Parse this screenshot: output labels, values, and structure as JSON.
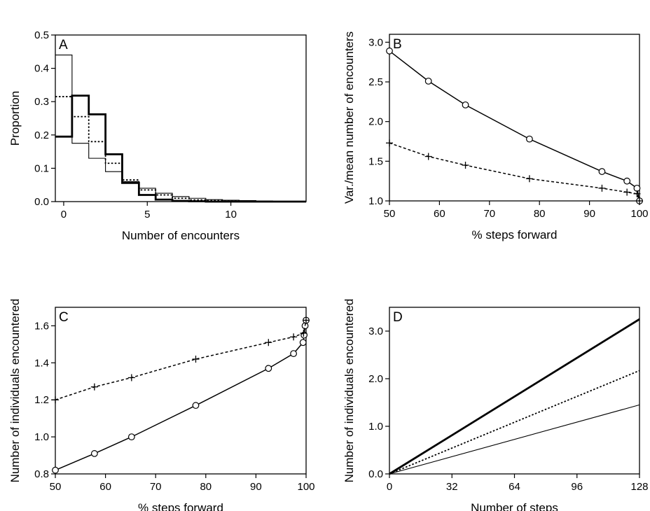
{
  "chart_data": [
    {
      "id": "A",
      "type": "histogram",
      "panel_label": "A",
      "xlabel": "Number of encounters",
      "ylabel": "Proportion",
      "xlim": [
        -0.5,
        14.5
      ],
      "ylim": [
        0,
        0.5
      ],
      "xticks": [
        0,
        5,
        10
      ],
      "yticks": [
        0.0,
        0.1,
        0.2,
        0.3,
        0.4,
        0.5
      ],
      "ytick_labels": [
        "0.0",
        "0.1",
        "0.2",
        "0.3",
        "0.4",
        "0.5"
      ],
      "categories": [
        0,
        1,
        2,
        3,
        4,
        5,
        6,
        7,
        8,
        9,
        10,
        11,
        12,
        13,
        14
      ],
      "series": [
        {
          "style": "thin",
          "values": [
            0.44,
            0.175,
            0.13,
            0.09,
            0.06,
            0.04,
            0.025,
            0.015,
            0.01,
            0.006,
            0.004,
            0.003,
            0.002,
            0.001,
            0.001
          ]
        },
        {
          "style": "dotted",
          "values": [
            0.315,
            0.255,
            0.18,
            0.115,
            0.065,
            0.035,
            0.02,
            0.01,
            0.005,
            0.003,
            0.002,
            0.001,
            0.001,
            0.0,
            0.0
          ]
        },
        {
          "style": "thick",
          "values": [
            0.195,
            0.318,
            0.262,
            0.142,
            0.056,
            0.02,
            0.006,
            0.002,
            0.001,
            0.0,
            0.0,
            0.0,
            0.0,
            0.0,
            0.0
          ]
        }
      ]
    },
    {
      "id": "B",
      "type": "line",
      "panel_label": "B",
      "xlabel": "% steps forward",
      "ylabel": "Var./mean number of encounters",
      "xlim": [
        50,
        100
      ],
      "ylim": [
        1.0,
        3.1
      ],
      "xticks": [
        50,
        60,
        70,
        80,
        90,
        100
      ],
      "yticks": [
        1.0,
        1.5,
        2.0,
        2.5,
        3.0
      ],
      "ytick_labels": [
        "1.0",
        "1.5",
        "2.0",
        "2.5",
        "3.0"
      ],
      "series": [
        {
          "style": "solid",
          "marker": "circle",
          "x": [
            50,
            57.8,
            65.2,
            78,
            92.5,
            97.5,
            99.5,
            100
          ],
          "y": [
            2.89,
            2.51,
            2.21,
            1.78,
            1.37,
            1.25,
            1.16,
            1.0
          ]
        },
        {
          "style": "dashed",
          "marker": "plus",
          "x": [
            50,
            57.8,
            65.2,
            78,
            92.5,
            97.5,
            99.5,
            100
          ],
          "y": [
            1.73,
            1.56,
            1.45,
            1.28,
            1.16,
            1.11,
            1.09,
            1.0
          ]
        }
      ]
    },
    {
      "id": "C",
      "type": "line",
      "panel_label": "C",
      "xlabel": "% steps forward",
      "ylabel": "Number of individuals encountered",
      "xlim": [
        50,
        100
      ],
      "ylim": [
        0.8,
        1.7
      ],
      "xticks": [
        50,
        60,
        70,
        80,
        90,
        100
      ],
      "yticks": [
        0.8,
        1.0,
        1.2,
        1.4,
        1.6
      ],
      "ytick_labels": [
        "0.8",
        "1.0",
        "1.2",
        "1.4",
        "1.6"
      ],
      "series": [
        {
          "style": "solid",
          "marker": "circle",
          "x": [
            50,
            57.8,
            65.2,
            78,
            92.5,
            97.5,
            99.4,
            99.6,
            99.8,
            100
          ],
          "y": [
            0.82,
            0.91,
            1.0,
            1.17,
            1.37,
            1.45,
            1.51,
            1.55,
            1.6,
            1.63
          ]
        },
        {
          "style": "dashed",
          "marker": "plus",
          "x": [
            50,
            57.8,
            65.2,
            78,
            92.5,
            97.5,
            99.5,
            100
          ],
          "y": [
            1.2,
            1.27,
            1.32,
            1.42,
            1.51,
            1.54,
            1.56,
            1.63
          ]
        }
      ]
    },
    {
      "id": "D",
      "type": "line",
      "panel_label": "D",
      "xlabel": "Number of steps",
      "ylabel": "Number of individuals encountered",
      "xlim": [
        0,
        128
      ],
      "ylim": [
        0,
        3.5
      ],
      "xticks": [
        0,
        32,
        64,
        96,
        128
      ],
      "yticks": [
        0.0,
        1.0,
        2.0,
        3.0
      ],
      "ytick_labels": [
        "0.0",
        "1.0",
        "2.0",
        "3.0"
      ],
      "series": [
        {
          "style": "thick",
          "x": [
            0,
            128
          ],
          "y": [
            0,
            3.25
          ]
        },
        {
          "style": "dotted",
          "x": [
            0,
            128
          ],
          "y": [
            0,
            2.17
          ]
        },
        {
          "style": "thin",
          "x": [
            0,
            128
          ],
          "y": [
            0,
            1.45
          ]
        }
      ]
    }
  ]
}
